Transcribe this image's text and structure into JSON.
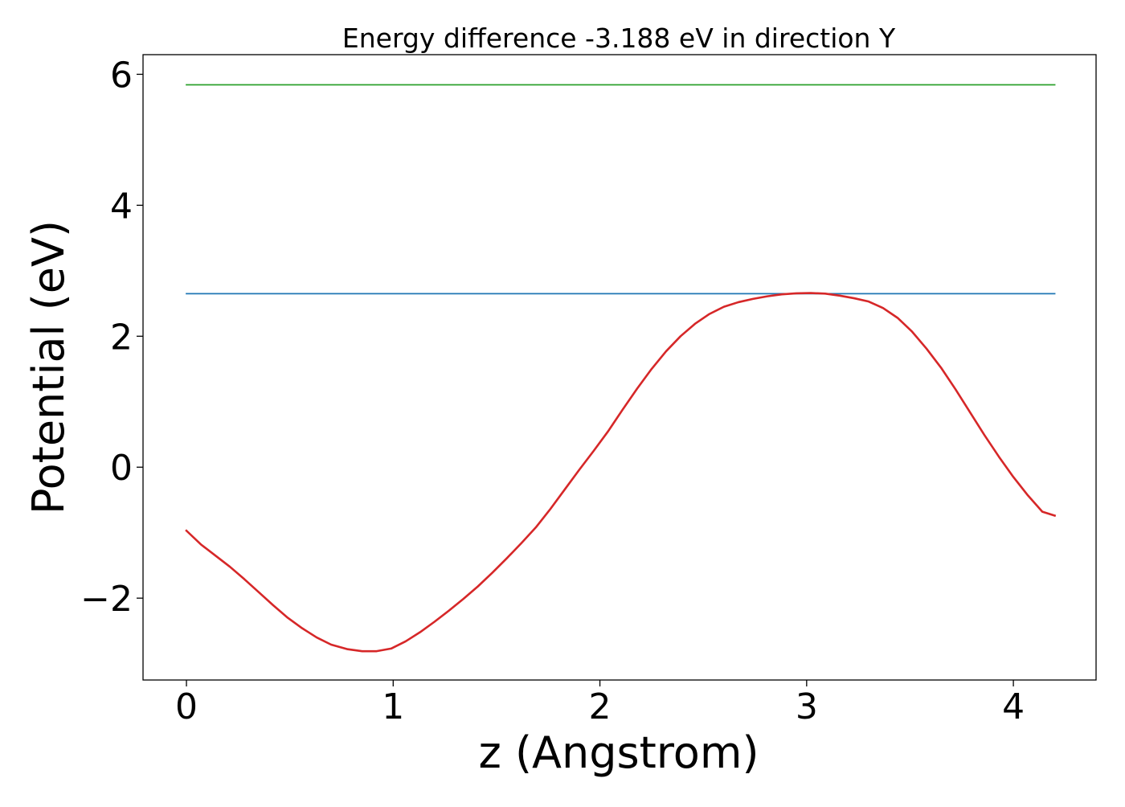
{
  "chart_data": {
    "type": "line",
    "title": "Energy difference -3.188 eV in direction Y",
    "xlabel": "z (Angstrom)",
    "ylabel": "Potential (eV)",
    "xlim": [
      -0.21,
      4.4
    ],
    "ylim": [
      -3.25,
      6.3
    ],
    "x_ticks": [
      {
        "value": 0,
        "label": "0"
      },
      {
        "value": 1,
        "label": "1"
      },
      {
        "value": 2,
        "label": "2"
      },
      {
        "value": 3,
        "label": "3"
      },
      {
        "value": 4,
        "label": "4"
      }
    ],
    "y_ticks": [
      {
        "value": -2,
        "label": "−2"
      },
      {
        "value": 0,
        "label": "0"
      },
      {
        "value": 2,
        "label": "2"
      },
      {
        "value": 4,
        "label": "4"
      },
      {
        "value": 6,
        "label": "6"
      }
    ],
    "grid": false,
    "legend": false,
    "series": [
      {
        "color": "#2ca02c",
        "x": [
          0,
          4.2
        ],
        "y": [
          5.84,
          5.84
        ]
      },
      {
        "color": "#1f77b4",
        "x": [
          0,
          4.2
        ],
        "y": [
          2.65,
          2.65
        ]
      },
      {
        "color": "#d62728",
        "x": [
          0,
          0.07,
          0.14,
          0.21,
          0.28,
          0.35,
          0.42,
          0.49,
          0.56,
          0.63,
          0.7,
          0.78,
          0.85,
          0.92,
          0.99,
          1.06,
          1.13,
          1.2,
          1.27,
          1.34,
          1.41,
          1.48,
          1.55,
          1.62,
          1.69,
          1.76,
          1.83,
          1.9,
          1.97,
          2.04,
          2.11,
          2.18,
          2.25,
          2.32,
          2.39,
          2.46,
          2.53,
          2.6,
          2.67,
          2.74,
          2.81,
          2.88,
          2.95,
          3.02,
          3.09,
          3.16,
          3.23,
          3.3,
          3.37,
          3.44,
          3.51,
          3.58,
          3.65,
          3.72,
          3.79,
          3.86,
          3.93,
          4.0,
          4.07,
          4.14,
          4.2
        ],
        "y": [
          -0.97,
          -1.18,
          -1.35,
          -1.52,
          -1.71,
          -1.91,
          -2.11,
          -2.3,
          -2.46,
          -2.6,
          -2.71,
          -2.78,
          -2.81,
          -2.81,
          -2.77,
          -2.66,
          -2.52,
          -2.36,
          -2.19,
          -2.01,
          -1.82,
          -1.61,
          -1.39,
          -1.16,
          -0.92,
          -0.64,
          -0.34,
          -0.04,
          0.25,
          0.55,
          0.88,
          1.2,
          1.5,
          1.77,
          2.0,
          2.19,
          2.34,
          2.45,
          2.52,
          2.57,
          2.61,
          2.64,
          2.655,
          2.66,
          2.65,
          2.62,
          2.58,
          2.53,
          2.43,
          2.28,
          2.07,
          1.81,
          1.52,
          1.19,
          0.84,
          0.49,
          0.16,
          -0.15,
          -0.43,
          -0.68,
          -0.74
        ]
      }
    ]
  }
}
